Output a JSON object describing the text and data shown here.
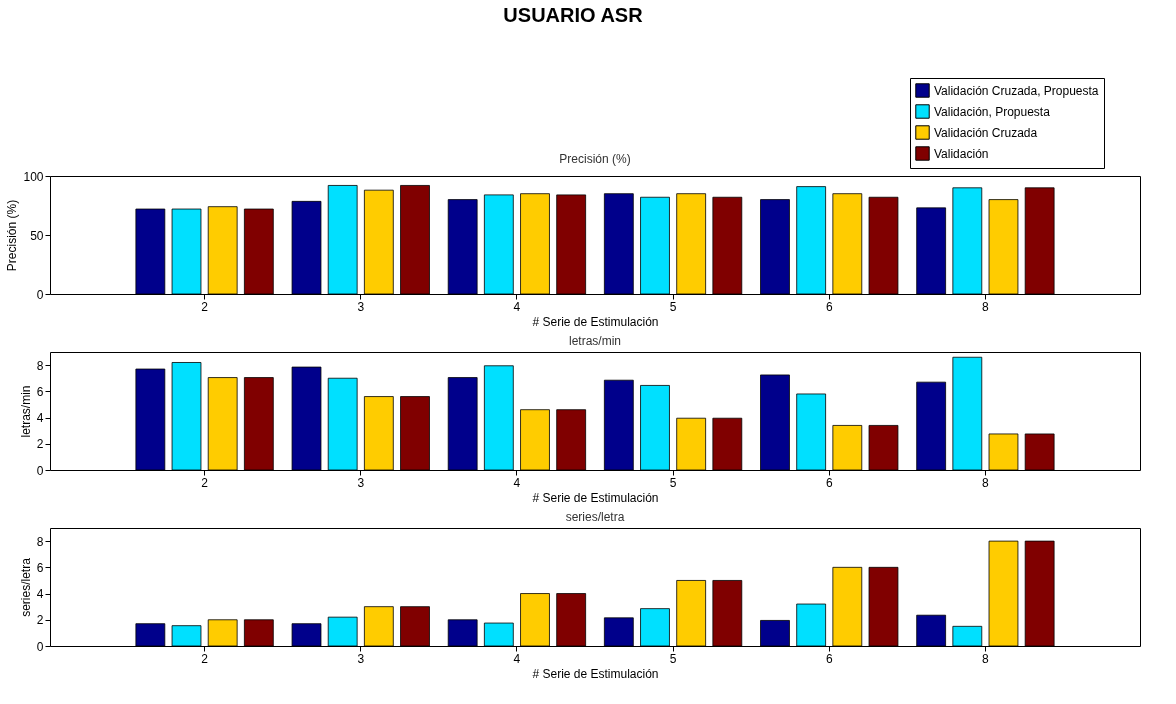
{
  "chart_data": [
    {
      "type": "bar",
      "title": "Precisión (%)",
      "xlabel": "# Serie de Estimulación",
      "ylabel": "Precisión (%)",
      "annotations": [
        "USUARIO ASR"
      ],
      "categories": [
        "2",
        "3",
        "4",
        "5",
        "6",
        "8"
      ],
      "ylim": [
        0,
        100
      ],
      "yticks": [
        0,
        50,
        100
      ],
      "grid": false,
      "legend": "top right",
      "series": [
        {
          "name": "Validación Cruzada, Propuesta",
          "color": "#00008b",
          "values": [
            72,
            78.5,
            80,
            85,
            80,
            73
          ]
        },
        {
          "name": "Validación, Propuesta",
          "color": "#00e0ff",
          "values": [
            72,
            92,
            84,
            82,
            91,
            90
          ]
        },
        {
          "name": "Validación Cruzada",
          "color": "#ffcc00",
          "values": [
            74,
            88,
            85,
            85,
            85,
            80
          ]
        },
        {
          "name": "Validación",
          "color": "#800000",
          "values": [
            72,
            92,
            84,
            82,
            82,
            90
          ]
        }
      ]
    },
    {
      "type": "bar",
      "title": "letras/min",
      "xlabel": "# Serie de Estimulación",
      "ylabel": "letras/min",
      "categories": [
        "2",
        "3",
        "4",
        "5",
        "6",
        "8"
      ],
      "ylim": [
        0,
        9
      ],
      "yticks": [
        0,
        2,
        4,
        6,
        8
      ],
      "grid": false,
      "legend": false,
      "series": [
        {
          "color": "#00008b",
          "values": [
            7.7,
            7.85,
            7.05,
            6.85,
            7.25,
            6.7
          ]
        },
        {
          "color": "#00e0ff",
          "values": [
            8.2,
            7.0,
            7.95,
            6.45,
            5.8,
            8.6
          ]
        },
        {
          "color": "#ffcc00",
          "values": [
            7.05,
            5.6,
            4.6,
            3.95,
            3.4,
            2.75
          ]
        },
        {
          "color": "#800000",
          "values": [
            7.05,
            5.6,
            4.6,
            3.95,
            3.4,
            2.75
          ]
        }
      ]
    },
    {
      "type": "bar",
      "title": "series/letra",
      "xlabel": "# Serie de Estimulación",
      "ylabel": "series/letra",
      "categories": [
        "2",
        "3",
        "4",
        "5",
        "6",
        "8"
      ],
      "ylim": [
        0,
        9
      ],
      "yticks": [
        0,
        2,
        4,
        6,
        8
      ],
      "grid": false,
      "legend": false,
      "series": [
        {
          "color": "#00008b",
          "values": [
            1.7,
            1.7,
            2.0,
            2.15,
            1.95,
            2.35
          ]
        },
        {
          "color": "#00e0ff",
          "values": [
            1.55,
            2.2,
            1.75,
            2.85,
            3.2,
            1.5
          ]
        },
        {
          "color": "#ffcc00",
          "values": [
            2,
            3,
            4,
            5,
            6,
            8
          ]
        },
        {
          "color": "#800000",
          "values": [
            2,
            3,
            4,
            5,
            6,
            8
          ]
        }
      ]
    }
  ]
}
